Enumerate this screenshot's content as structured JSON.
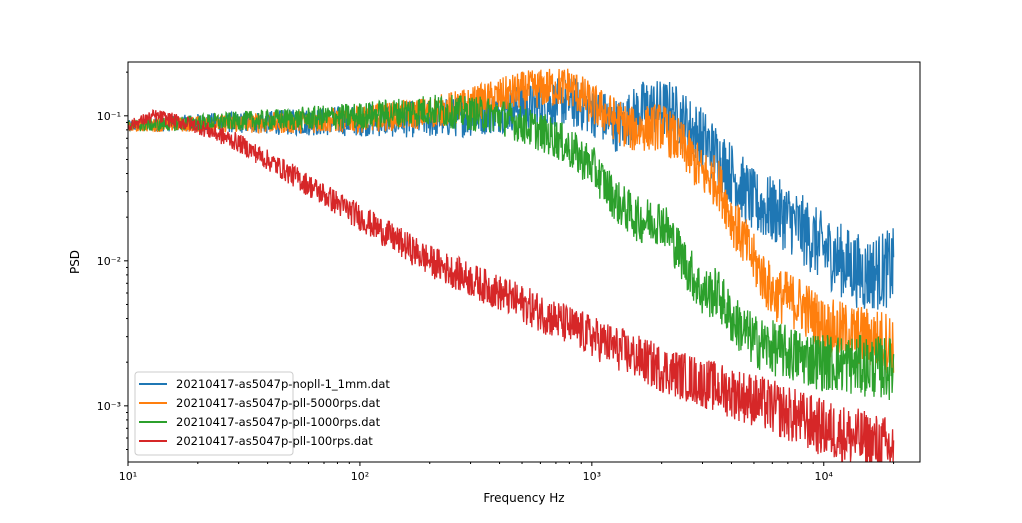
{
  "chart_data": {
    "type": "line",
    "title": "",
    "xlabel": "Frequency Hz",
    "ylabel": "PSD",
    "xscale": "log",
    "yscale": "log",
    "xlim": [
      10,
      26000
    ],
    "ylim": [
      0.00041,
      0.235
    ],
    "grid": false,
    "legend_placement": "lower-left",
    "x_ticks": [
      {
        "value": 10,
        "label": "10¹"
      },
      {
        "value": 100,
        "label": "10²"
      },
      {
        "value": 1000,
        "label": "10³"
      },
      {
        "value": 10000,
        "label": "10⁴"
      }
    ],
    "y_ticks": [
      {
        "value": 0.1,
        "label": "10⁻¹"
      },
      {
        "value": 0.01,
        "label": "10⁻²"
      },
      {
        "value": 0.001,
        "label": "10⁻³"
      }
    ],
    "series": [
      {
        "name": "20210417-as5047p-nopll-1_1mm.dat",
        "color": "#1f77b4",
        "x": [
          10,
          20,
          50,
          100,
          200,
          300,
          500,
          800,
          1000,
          1300,
          1700,
          2200,
          3000,
          4000,
          5000,
          7000,
          10000,
          15000,
          20000
        ],
        "y": [
          0.085,
          0.09,
          0.09,
          0.093,
          0.095,
          0.1,
          0.115,
          0.125,
          0.11,
          0.085,
          0.115,
          0.11,
          0.07,
          0.04,
          0.025,
          0.02,
          0.012,
          0.008,
          0.009
        ]
      },
      {
        "name": "20210417-as5047p-pll-5000rps.dat",
        "color": "#ff7f0e",
        "x": [
          10,
          20,
          50,
          100,
          200,
          300,
          500,
          800,
          1000,
          1500,
          2000,
          2500,
          3000,
          3500,
          4000,
          5000,
          6000,
          8000,
          10000,
          15000,
          20000
        ],
        "y": [
          0.085,
          0.088,
          0.09,
          0.095,
          0.105,
          0.12,
          0.15,
          0.16,
          0.12,
          0.08,
          0.085,
          0.06,
          0.04,
          0.035,
          0.02,
          0.01,
          0.006,
          0.005,
          0.0035,
          0.003,
          0.0027
        ]
      },
      {
        "name": "20210417-as5047p-pll-1000rps.dat",
        "color": "#2ca02c",
        "x": [
          10,
          20,
          50,
          100,
          200,
          400,
          700,
          1000,
          1300,
          1600,
          2000,
          2500,
          3000,
          3500,
          4000,
          5000,
          7000,
          10000,
          20000
        ],
        "y": [
          0.085,
          0.09,
          0.095,
          0.1,
          0.11,
          0.1,
          0.07,
          0.045,
          0.025,
          0.019,
          0.019,
          0.01,
          0.006,
          0.006,
          0.004,
          0.0028,
          0.0023,
          0.002,
          0.0018
        ]
      },
      {
        "name": "20210417-as5047p-pll-100rps.dat",
        "color": "#d62728",
        "x": [
          10,
          13,
          20,
          30,
          50,
          100,
          200,
          400,
          1000,
          2000,
          5000,
          10000,
          20000
        ],
        "y": [
          0.085,
          0.1,
          0.085,
          0.065,
          0.04,
          0.02,
          0.01,
          0.006,
          0.003,
          0.0018,
          0.0011,
          0.0007,
          0.0005
        ]
      }
    ]
  }
}
